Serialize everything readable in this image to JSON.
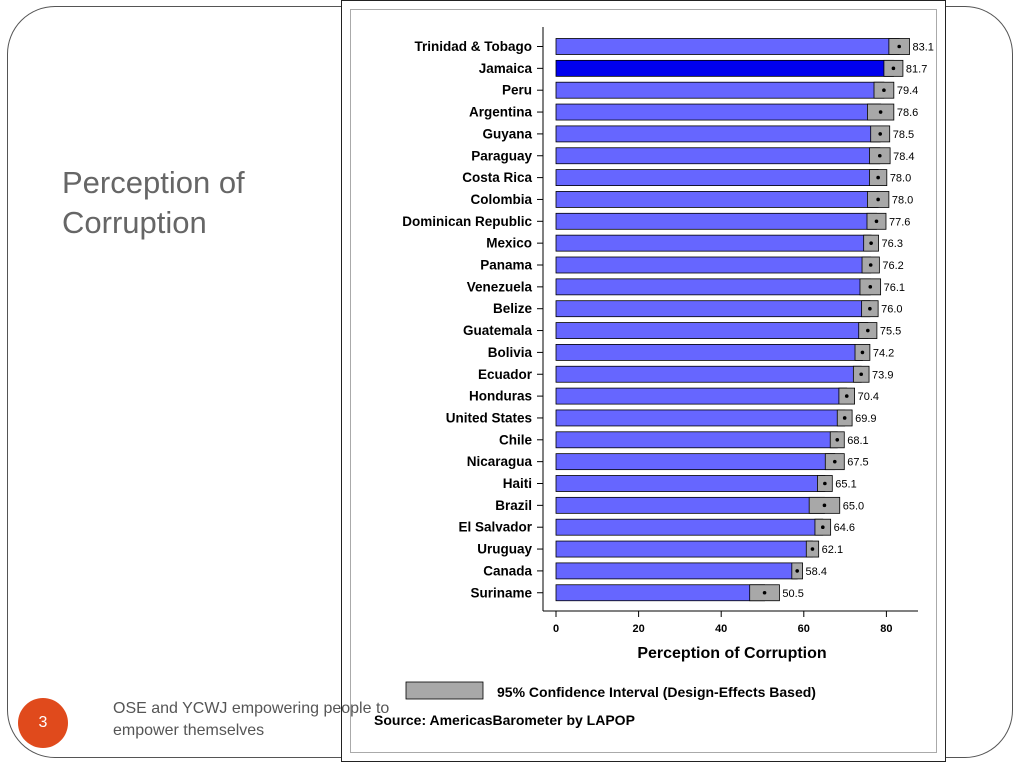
{
  "slide": {
    "title_line1": "Perception of",
    "title_line2": "Corruption",
    "page_number": "3",
    "footer_line1": "OSE and YCWJ empowering people to",
    "footer_line2": "empower themselves"
  },
  "colors": {
    "bar": "#6666ff",
    "bar_highlight": "#0000ee",
    "ci": "#a8a8a8",
    "accent": "#e04a1c"
  },
  "chart_data": {
    "type": "bar",
    "orientation": "horizontal",
    "categories": [
      "Trinidad & Tobago",
      "Jamaica",
      "Peru",
      "Argentina",
      "Guyana",
      "Paraguay",
      "Costa Rica",
      "Colombia",
      "Dominican Republic",
      "Mexico",
      "Panama",
      "Venezuela",
      "Belize",
      "Guatemala",
      "Bolivia",
      "Ecuador",
      "Honduras",
      "United States",
      "Chile",
      "Nicaragua",
      "Haiti",
      "Brazil",
      "El Salvador",
      "Uruguay",
      "Canada",
      "Suriname"
    ],
    "values": [
      83.1,
      81.7,
      79.4,
      78.6,
      78.5,
      78.4,
      78.0,
      78.0,
      77.6,
      76.3,
      76.2,
      76.1,
      76.0,
      75.5,
      74.2,
      73.9,
      70.4,
      69.9,
      68.1,
      67.5,
      65.1,
      65.0,
      64.6,
      62.1,
      58.4,
      50.5
    ],
    "value_labels": [
      "83.1",
      "81.7",
      "79.4",
      "78.6",
      "78.5",
      "78.4",
      "78.0",
      "78.0",
      "77.6",
      "76.3",
      "76.2",
      "76.1",
      "76.0",
      "75.5",
      "74.2",
      "73.9",
      "70.4",
      "69.9",
      "68.1",
      "67.5",
      "65.1",
      "65.0",
      "64.6",
      "62.1",
      "58.4",
      "50.5"
    ],
    "ci_low": [
      80.6,
      79.4,
      77.0,
      75.4,
      76.2,
      75.9,
      75.9,
      75.4,
      75.3,
      74.5,
      74.1,
      73.6,
      74.0,
      73.3,
      72.4,
      72.0,
      68.5,
      68.1,
      66.4,
      65.2,
      63.3,
      61.3,
      62.7,
      60.6,
      57.1,
      46.9
    ],
    "ci_high": [
      85.6,
      84.0,
      81.8,
      81.8,
      80.8,
      80.9,
      80.1,
      80.6,
      79.9,
      78.1,
      78.3,
      78.6,
      78.0,
      77.7,
      76.0,
      75.8,
      72.3,
      71.7,
      69.8,
      69.8,
      66.9,
      68.7,
      66.5,
      63.6,
      59.7,
      54.1
    ],
    "highlight_index": 1,
    "xticks": [
      "0",
      "20",
      "40",
      "60",
      "80"
    ],
    "xlim": [
      0,
      88
    ],
    "xlabel": "Perception of Corruption",
    "legend_label": "95% Confidence Interval (Design-Effects Based)",
    "source": "Source: AmericasBarometer by  LAPOP"
  }
}
